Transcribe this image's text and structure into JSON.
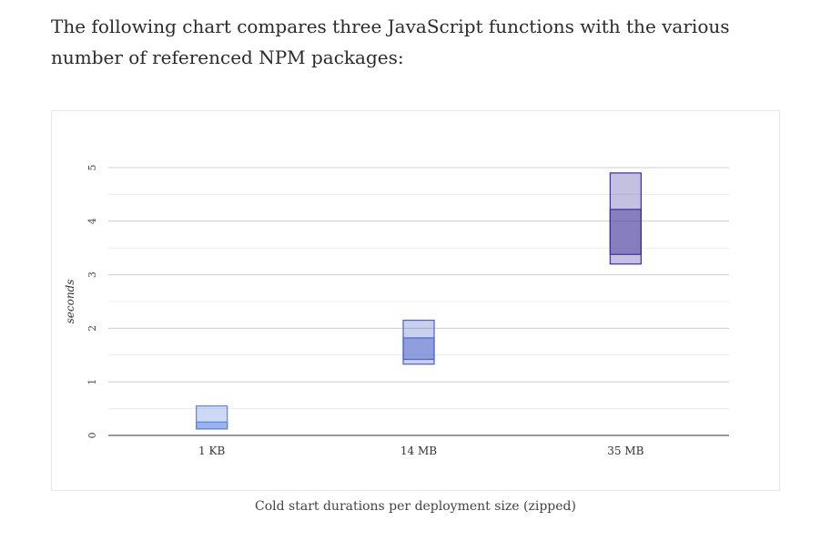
{
  "intro_text": "The following chart compares three JavaScript functions with the various number of referenced NPM packages:",
  "caption": "Cold start durations per deployment size (zipped)",
  "chart_data": {
    "type": "candlestick",
    "title": "",
    "xlabel": "",
    "ylabel": "seconds",
    "ylim": [
      0,
      5
    ],
    "yticks": [
      0,
      1,
      2,
      3,
      4,
      5
    ],
    "grid": true,
    "categories": [
      "1 KB",
      "14 MB",
      "35 MB"
    ],
    "boxes": [
      {
        "category": "1 KB",
        "outer": [
          0.12,
          0.55
        ],
        "inner": [
          0.12,
          0.25
        ],
        "color": "#5b84e0"
      },
      {
        "category": "14 MB",
        "outer": [
          1.33,
          2.15
        ],
        "inner": [
          1.42,
          1.82
        ],
        "color": "#4a63c8"
      },
      {
        "category": "35 MB",
        "outer": [
          3.2,
          4.9
        ],
        "inner": [
          3.38,
          4.22
        ],
        "color": "#3d2f9a"
      }
    ]
  }
}
